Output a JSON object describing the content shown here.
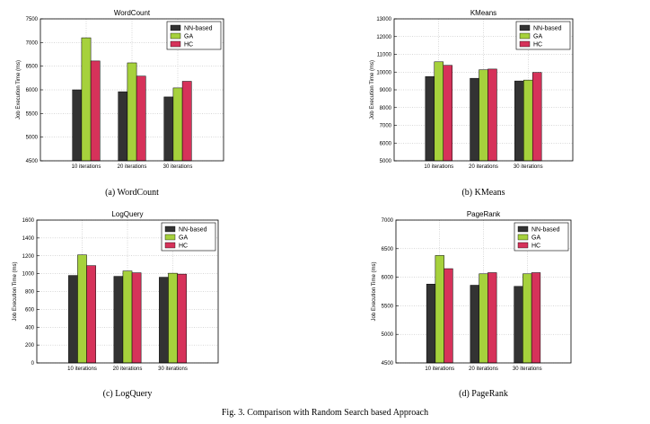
{
  "figure_caption": "Fig. 3.   Comparison with Random Search based Approach",
  "colors": {
    "NN-based": "#333333",
    "GA": "#a6d13c",
    "HC": "#d6325a"
  },
  "chart_data": [
    {
      "type": "bar",
      "title": "WordCount",
      "caption": "(a) WordCount",
      "ylabel": "Job Execution Time (ms)",
      "categories": [
        "10 iterations",
        "20 iterations",
        "30 iterations"
      ],
      "ylim": [
        4500,
        7500
      ],
      "yticks": [
        4500,
        5000,
        5500,
        6000,
        6500,
        7000,
        7500
      ],
      "legend": "top-right",
      "grid": true,
      "series": [
        {
          "name": "NN-based",
          "values": [
            6000,
            5960,
            5850
          ]
        },
        {
          "name": "GA",
          "values": [
            7100,
            6570,
            6040
          ]
        },
        {
          "name": "HC",
          "values": [
            6610,
            6290,
            6180
          ]
        }
      ]
    },
    {
      "type": "bar",
      "title": "KMeans",
      "caption": "(b) KMeans",
      "ylabel": "Job Execution Time (ms)",
      "categories": [
        "10 iterations",
        "20 iterations",
        "30 iterations"
      ],
      "ylim": [
        5000,
        13000
      ],
      "yticks": [
        5000,
        6000,
        7000,
        8000,
        9000,
        10000,
        11000,
        12000,
        13000
      ],
      "legend": "top-right",
      "grid": true,
      "series": [
        {
          "name": "NN-based",
          "values": [
            9750,
            9650,
            9500
          ]
        },
        {
          "name": "GA",
          "values": [
            10580,
            10130,
            9550
          ]
        },
        {
          "name": "HC",
          "values": [
            10380,
            10170,
            9980
          ]
        }
      ]
    },
    {
      "type": "bar",
      "title": "LogQuery",
      "caption": "(c) LogQuery",
      "ylabel": "Job Execution Time (ms)",
      "categories": [
        "10 iterations",
        "20 iterations",
        "30 iterations"
      ],
      "ylim": [
        0,
        1600
      ],
      "yticks": [
        0,
        200,
        400,
        600,
        800,
        1000,
        1200,
        1400,
        1600
      ],
      "legend": "top-right",
      "grid": true,
      "series": [
        {
          "name": "NN-based",
          "values": [
            980,
            970,
            960
          ]
        },
        {
          "name": "GA",
          "values": [
            1210,
            1030,
            1005
          ]
        },
        {
          "name": "HC",
          "values": [
            1090,
            1010,
            995
          ]
        }
      ]
    },
    {
      "type": "bar",
      "title": "PageRank",
      "caption": "(d) PageRank",
      "ylabel": "Job Execution Time (ms)",
      "categories": [
        "10 iterations",
        "20 iterations",
        "30 iterations"
      ],
      "ylim": [
        4500,
        7000
      ],
      "yticks": [
        4500,
        5000,
        5500,
        6000,
        6500,
        7000
      ],
      "legend": "top-right",
      "grid": true,
      "series": [
        {
          "name": "NN-based",
          "values": [
            5880,
            5860,
            5840
          ]
        },
        {
          "name": "GA",
          "values": [
            6380,
            6060,
            6060
          ]
        },
        {
          "name": "HC",
          "values": [
            6150,
            6080,
            6080
          ]
        }
      ]
    }
  ]
}
